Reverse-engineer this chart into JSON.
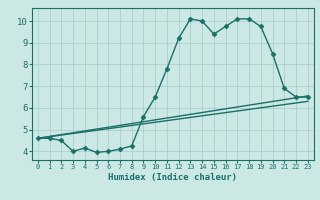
{
  "xlabel": "Humidex (Indice chaleur)",
  "bg_color": "#cce8e5",
  "grid_color": "#aacfcc",
  "line_color": "#1a7068",
  "xlim": [
    -0.5,
    23.5
  ],
  "ylim": [
    3.6,
    10.6
  ],
  "xticks": [
    0,
    1,
    2,
    3,
    4,
    5,
    6,
    7,
    8,
    9,
    10,
    11,
    12,
    13,
    14,
    15,
    16,
    17,
    18,
    19,
    20,
    21,
    22,
    23
  ],
  "yticks": [
    4,
    5,
    6,
    7,
    8,
    9,
    10
  ],
  "line1_x": [
    0,
    1,
    2,
    3,
    4,
    5,
    6,
    7,
    8,
    9,
    10,
    11,
    12,
    13,
    14,
    15,
    16,
    17,
    18,
    19,
    20,
    21,
    22,
    23
  ],
  "line1_y": [
    4.6,
    4.6,
    4.5,
    4.0,
    4.15,
    3.95,
    4.0,
    4.1,
    4.25,
    5.6,
    6.5,
    7.8,
    9.2,
    10.1,
    10.0,
    9.4,
    9.75,
    10.1,
    10.1,
    9.75,
    8.5,
    6.9,
    6.5,
    6.5
  ],
  "line2_x": [
    0,
    23
  ],
  "line2_y": [
    4.6,
    6.3
  ],
  "line3_x": [
    0,
    23
  ],
  "line3_y": [
    4.6,
    6.55
  ],
  "marker": "D",
  "markersize": 2.5,
  "linewidth": 1.0
}
